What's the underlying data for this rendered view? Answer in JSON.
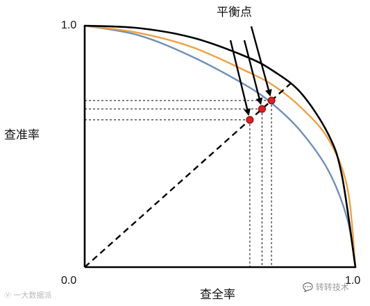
{
  "title": "平衡点",
  "axes": {
    "x_label": "查全率",
    "y_label": "查准率",
    "origin_label": "0.0",
    "x_max_label": "1.0",
    "y_max_label": "1.0"
  },
  "colors": {
    "black_curve": "#000000",
    "orange_curve": "#f0a040",
    "blue_curve": "#6e8fb8",
    "point_fill": "#e02020",
    "point_stroke": "#7a0000"
  },
  "watermarks": {
    "left": "一大数据派",
    "right": "转转技术"
  },
  "chart_data": {
    "type": "line",
    "title": "平衡点",
    "xlabel": "查全率",
    "ylabel": "查准率",
    "xlim": [
      0,
      1
    ],
    "ylim": [
      0,
      1
    ],
    "series": [
      {
        "color": "#000000",
        "x": [
          0.0,
          0.2,
          0.4,
          0.6,
          0.7,
          0.8,
          0.9,
          0.95,
          1.0
        ],
        "y": [
          1.0,
          0.99,
          0.95,
          0.87,
          0.81,
          0.72,
          0.55,
          0.38,
          0.0
        ]
      },
      {
        "color": "#f0a040",
        "x": [
          0.0,
          0.2,
          0.4,
          0.6,
          0.7,
          0.8,
          0.9,
          0.97,
          1.0
        ],
        "y": [
          1.0,
          0.97,
          0.91,
          0.81,
          0.75,
          0.66,
          0.53,
          0.33,
          0.0
        ]
      },
      {
        "color": "#6e8fb8",
        "x": [
          0.0,
          0.2,
          0.4,
          0.6,
          0.7,
          0.8,
          0.9,
          0.97,
          1.0
        ],
        "y": [
          1.0,
          0.96,
          0.87,
          0.75,
          0.67,
          0.56,
          0.4,
          0.2,
          0.0
        ]
      }
    ],
    "reference_line": {
      "style": "dashed",
      "x": [
        0.0,
        0.77
      ],
      "y": [
        0.0,
        0.77
      ]
    },
    "break_even_points": [
      {
        "x": 0.61,
        "y": 0.61
      },
      {
        "x": 0.655,
        "y": 0.655
      },
      {
        "x": 0.69,
        "y": 0.69
      }
    ]
  }
}
